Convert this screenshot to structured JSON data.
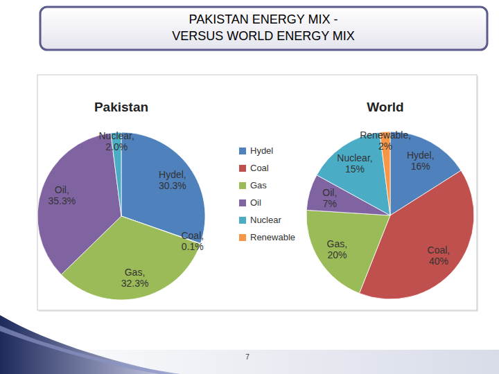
{
  "slide": {
    "title_lines": [
      "PAKISTAN ENERGY MIX -",
      "VERSUS WORLD ENERGY MIX"
    ],
    "page_number": 7
  },
  "chart_data": [
    {
      "type": "pie",
      "title": "Pakistan",
      "categories": [
        "Hydel",
        "Coal",
        "Gas",
        "Oil",
        "Nuclear"
      ],
      "values": [
        30.3,
        0.1,
        32.3,
        35.3,
        2.0
      ],
      "value_labels": [
        "Hydel, 30.3%",
        "Coal, 0.1%",
        "Gas, 32.3%",
        "Oil, 35.3%",
        "Nuclear, 2.0%"
      ],
      "colors": [
        "#4f81bd",
        "#c0504d",
        "#9bbb59",
        "#8064a2",
        "#4bacc6"
      ],
      "data_labels": true
    },
    {
      "type": "pie",
      "title": "World",
      "categories": [
        "Hydel",
        "Coal",
        "Gas",
        "Oil",
        "Nuclear",
        "Renewable"
      ],
      "values": [
        16,
        40,
        20,
        7,
        15,
        2
      ],
      "value_labels": [
        "Hydel, 16%",
        "Coal, 40%",
        "Gas, 20%",
        "Oil, 7%",
        "Nuclear, 15%",
        "Renewable, 2%"
      ],
      "colors": [
        "#4f81bd",
        "#c0504d",
        "#9bbb59",
        "#8064a2",
        "#4bacc6",
        "#f79646"
      ],
      "data_labels": true,
      "legend": "left"
    }
  ]
}
